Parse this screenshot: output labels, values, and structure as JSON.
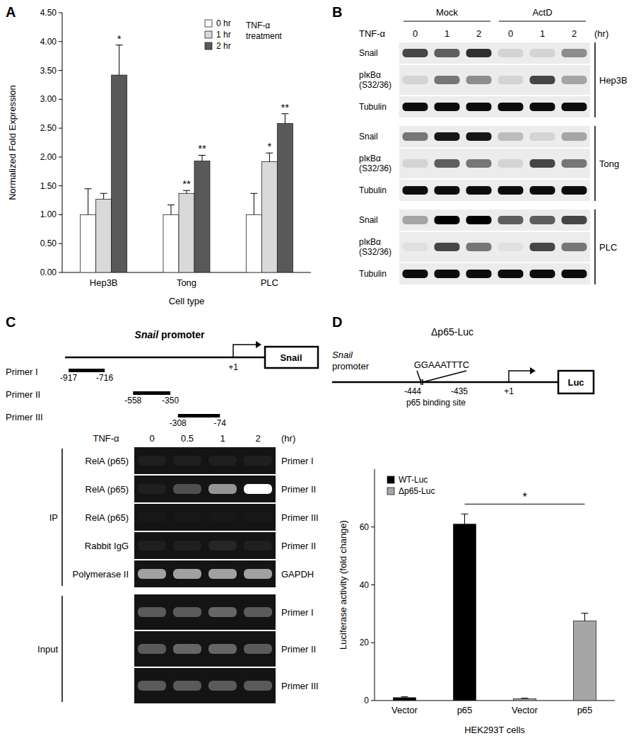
{
  "panel_labels": [
    "A",
    "B",
    "C",
    "D"
  ],
  "chart_data": [
    {
      "type": "bar",
      "x_label": "Cell type",
      "y_label": "Normalized Fold Expression",
      "categories": [
        "Hep3B",
        "Tong",
        "PLC"
      ],
      "legend_title": [
        "TNF-α",
        "treatment"
      ],
      "series": [
        {
          "name": "0 hr",
          "color": "#ffffff",
          "values": [
            1.0,
            1.0,
            1.0
          ],
          "errors": [
            0.45,
            0.17,
            0.37
          ]
        },
        {
          "name": "1 hr",
          "color": "#d9d9d9",
          "values": [
            1.27,
            1.37,
            1.92
          ],
          "errors": [
            0.1,
            0.05,
            0.15
          ],
          "significance": [
            null,
            "**",
            "*"
          ]
        },
        {
          "name": "2 hr",
          "color": "#595959",
          "values": [
            3.42,
            1.93,
            2.58
          ],
          "errors": [
            0.52,
            0.1,
            0.17
          ],
          "significance": [
            "*",
            "**",
            "**"
          ]
        }
      ],
      "ylim": [
        0,
        4.5
      ],
      "yticks": [
        {
          "value": 0,
          "label": "0.00"
        },
        {
          "value": 0.5,
          "label": "0.50"
        },
        {
          "value": 1,
          "label": "1.00"
        },
        {
          "value": 1.5,
          "label": "1.50"
        },
        {
          "value": 2,
          "label": "2.00"
        },
        {
          "value": 2.5,
          "label": "2.50"
        },
        {
          "value": 3,
          "label": "3.00"
        },
        {
          "value": 3.5,
          "label": "3.50"
        },
        {
          "value": 4,
          "label": "4.00"
        },
        {
          "value": 4.5,
          "label": "4.50"
        }
      ],
      "grid": false,
      "legend": "top-right"
    },
    {
      "type": "bar",
      "x_label": "HEK293T cells",
      "y_label": "Luciferase activity (fold change)",
      "categories": [
        "Vector",
        "p65",
        "Vector",
        "p65"
      ],
      "series": [
        {
          "name": "WT-Luc",
          "color": "#000000",
          "values": [
            1,
            61,
            null,
            null
          ],
          "errors": [
            0.3,
            3.5,
            null,
            null
          ]
        },
        {
          "name": "Δp65-Luc",
          "color": "#a6a6a6",
          "values": [
            null,
            null,
            0.6,
            27.5
          ],
          "errors": [
            null,
            null,
            0.2,
            2.7
          ]
        }
      ],
      "ylim": [
        0,
        80
      ],
      "yticks": [
        0,
        20,
        40,
        60
      ],
      "grid": false,
      "legend": "top-left",
      "annotation": "*"
    }
  ],
  "blot": {
    "groups": [
      "Mock",
      "ActD"
    ],
    "treatment": "TNF-α",
    "lanes": [
      0,
      1,
      2,
      0,
      1,
      2
    ],
    "unit": "(hr)",
    "cell_lines": [
      {
        "name": "Hep3B",
        "rows": [
          {
            "label": [
              "Snail"
            ],
            "bands": [
              0.7,
              0.6,
              0.8,
              0.1,
              0.1,
              0.4
            ]
          },
          {
            "label": [
              "pIκBα",
              "(S32/36)"
            ],
            "bands": [
              0.1,
              0.5,
              0.4,
              0.1,
              0.7,
              0.3
            ]
          },
          {
            "label": [
              "Tubulin"
            ],
            "bands": [
              0.95,
              0.95,
              0.95,
              0.95,
              0.95,
              0.95
            ]
          }
        ]
      },
      {
        "name": "Tong",
        "rows": [
          {
            "label": [
              "Snail"
            ],
            "bands": [
              0.5,
              0.9,
              0.9,
              0.2,
              0.1,
              0.3
            ]
          },
          {
            "label": [
              "pIκBα",
              "(S32/36)"
            ],
            "bands": [
              0.1,
              0.6,
              0.5,
              0.1,
              0.7,
              0.5
            ]
          },
          {
            "label": [
              "Tubulin"
            ],
            "bands": [
              0.95,
              0.95,
              0.95,
              0.95,
              0.95,
              0.95
            ]
          }
        ]
      },
      {
        "name": "PLC",
        "rows": [
          {
            "label": [
              "Snail"
            ],
            "bands": [
              0.3,
              1,
              1,
              0.6,
              0.6,
              0.7
            ]
          },
          {
            "label": [
              "pIκBα",
              "(S32/36)"
            ],
            "bands": [
              0.05,
              0.7,
              0.5,
              0.05,
              0.7,
              0.5
            ]
          },
          {
            "label": [
              "Tubulin"
            ],
            "bands": [
              0.95,
              0.95,
              0.95,
              0.95,
              0.95,
              0.95
            ]
          }
        ]
      }
    ]
  },
  "chip": {
    "title": "Snail promoter",
    "gene": "Snail",
    "tss": "+1",
    "primers": [
      {
        "name": "Primer I",
        "start": -917,
        "end": -716
      },
      {
        "name": "Primer II",
        "start": -558,
        "end": -350
      },
      {
        "name": "Primer III",
        "start": -308,
        "end": -74
      }
    ],
    "treatment": "TNF-α",
    "lanes": [
      0,
      0.5,
      1,
      2
    ],
    "unit": "(hr)",
    "groups": [
      {
        "label": "IP",
        "rows": [
          {
            "antibody": "RelA (p65)",
            "target": "Primer I",
            "bands": [
              0.05,
              0.05,
              0.05,
              0.05
            ]
          },
          {
            "antibody": "RelA (p65)",
            "target": "Primer II",
            "bands": [
              0.05,
              0.25,
              0.55,
              1
            ]
          },
          {
            "antibody": "RelA (p65)",
            "target": "Primer III",
            "bands": [
              0.02,
              0.02,
              0.02,
              0.02
            ]
          },
          {
            "antibody": "Rabbit IgG",
            "target": "Primer II",
            "bands": [
              0.05,
              0.05,
              0.08,
              0.05
            ]
          },
          {
            "antibody": "Polymerase II",
            "target": "GAPDH",
            "bands": [
              0.6,
              0.6,
              0.6,
              0.6
            ]
          }
        ]
      },
      {
        "label": "Input",
        "rows": [
          {
            "target": "Primer I",
            "bands": [
              0.3,
              0.3,
              0.35,
              0.3
            ]
          },
          {
            "target": "Primer II",
            "bands": [
              0.3,
              0.35,
              0.35,
              0.3
            ]
          },
          {
            "target": "Primer III",
            "bands": [
              0.3,
              0.3,
              0.3,
              0.3
            ]
          }
        ]
      }
    ]
  },
  "construct": {
    "title": "Δp65-Luc",
    "promoter": "Snail promoter",
    "sequence": "GGAAATTTC",
    "site_start": -444,
    "site_end": -435,
    "site_label": "p65 binding site",
    "tss": "+1",
    "reporter": "Luc"
  }
}
